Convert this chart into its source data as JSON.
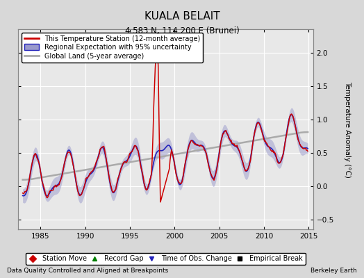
{
  "title": "KUALA BELAIT",
  "subtitle": "4.583 N, 114.200 E (Brunei)",
  "ylabel": "Temperature Anomaly (°C)",
  "xlabel_left": "Data Quality Controlled and Aligned at Breakpoints",
  "xlabel_right": "Berkeley Earth",
  "xlim": [
    1982.5,
    2015.5
  ],
  "ylim": [
    -0.65,
    2.35
  ],
  "yticks": [
    -0.5,
    0,
    0.5,
    1.0,
    1.5,
    2.0
  ],
  "xticks": [
    1985,
    1990,
    1995,
    2000,
    2005,
    2010,
    2015
  ],
  "bg_color": "#d8d8d8",
  "plot_bg_color": "#e8e8e8",
  "grid_color": "#ffffff",
  "red_color": "#cc0000",
  "blue_color": "#2222bb",
  "blue_fill_color": "#9999cc",
  "gray_color": "#aaaaaa",
  "title_fontsize": 11,
  "subtitle_fontsize": 8.5,
  "legend_fontsize": 7,
  "tick_fontsize": 7.5,
  "label_fontsize": 7.5
}
